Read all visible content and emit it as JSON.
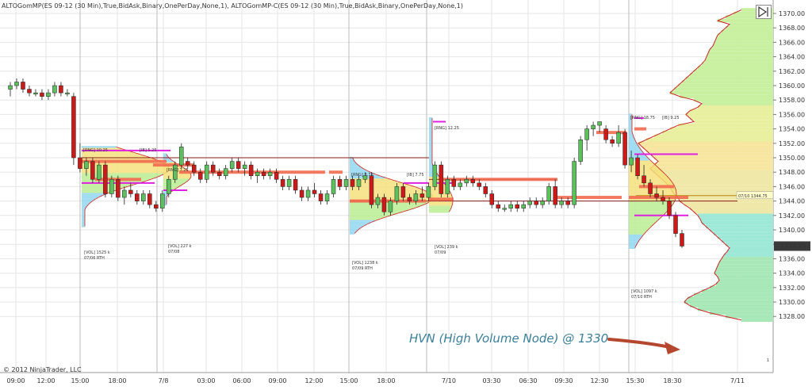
{
  "header": {
    "title": "ALTOGomMP(ES 09-12 (30 Min),True,BidAsk,Binary,OnePerDay,None,1), ALTOGomMP-C(ES 09-12 (30 Min),True,BidAsk,Binary,OnePerDay,None,1)"
  },
  "copyright": "© 2012 NinjaTrader, LLC",
  "annotation": "HVN (High Volume Node) @ 1330",
  "y_axis": {
    "ticks": [
      "1370.00",
      "1368.00",
      "1366.00",
      "1364.00",
      "1362.00",
      "1360.00",
      "1358.00",
      "1356.00",
      "1354.00",
      "1352.00",
      "1350.00",
      "1348.00",
      "1346.00",
      "1344.00",
      "1342.00",
      "1340.00",
      "1338.00",
      "1336.00",
      "1334.00",
      "1332.00",
      "1330.00",
      "1328.00"
    ],
    "current_price": "1337.75",
    "marker_label": "07/10 1344.75"
  },
  "x_axis": {
    "ticks": [
      "09:00",
      "12:00",
      "15:00",
      "18:00",
      "7/8",
      "03:00",
      "06:00",
      "09:00",
      "12:00",
      "15:00",
      "18:00",
      "7/10",
      "03:30",
      "06:30",
      "09:30",
      "12:30",
      "15:30",
      "18:30",
      "7/11"
    ]
  },
  "profile_labels": {
    "p1_rng": "[RNG] 10.25",
    "p1_ib": "[IB] 5.25",
    "p1_vol": "[VOL] 1525 k",
    "p1_date": "07/06 RTH",
    "p2_rng": "[RNG] 7.25",
    "p2_vol": "[VOL] 227 k",
    "p2_date": "07/08",
    "p3_rng": "[RNG] 8.75",
    "p3_ib": "[IB] 7.75",
    "p3_vol": "[VOL] 1238 k",
    "p3_date": "07/09 RTH",
    "p4_rng": "[RNG] 12.25",
    "p4_vol": "[VOL] 239 k",
    "p4_date": "07/09",
    "p5_rng": "[RNG] 18.75",
    "p5_ib": "[IB] 9.25",
    "p5_vol": "[VOL] 1097 k",
    "p5_date": "07/10 RTH"
  },
  "corner_number": "1",
  "colors": {
    "up_candle": "#5cc05c",
    "down_candle": "#cc1a1a",
    "poc": "#f26a4f",
    "profile_outline": "#cc2222",
    "magenta": "#e020e0",
    "naked_poc": "#8b1a1a",
    "grid": "#e6e6e6",
    "arrow": "#b5472f",
    "annotation": "#3a7f9a"
  },
  "chart_data": {
    "type": "candlestick",
    "title": "",
    "ylim": [
      1327.5,
      1371
    ],
    "candles": [
      {
        "o": 1359.5,
        "h": 1360.5,
        "l": 1358.5,
        "c": 1360.0
      },
      {
        "o": 1360.0,
        "h": 1361.0,
        "l": 1359.5,
        "c": 1360.5
      },
      {
        "o": 1360.5,
        "h": 1361.0,
        "l": 1359.0,
        "c": 1359.5
      },
      {
        "o": 1359.5,
        "h": 1360.0,
        "l": 1358.5,
        "c": 1359.0
      },
      {
        "o": 1359.0,
        "h": 1359.5,
        "l": 1358.5,
        "c": 1359.0
      },
      {
        "o": 1359.0,
        "h": 1359.5,
        "l": 1358.0,
        "c": 1358.5
      },
      {
        "o": 1358.5,
        "h": 1359.5,
        "l": 1358.0,
        "c": 1359.0
      },
      {
        "o": 1359.0,
        "h": 1360.5,
        "l": 1358.5,
        "c": 1360.0
      },
      {
        "o": 1360.0,
        "h": 1360.5,
        "l": 1358.5,
        "c": 1359.0
      },
      {
        "o": 1359.0,
        "h": 1359.5,
        "l": 1358.5,
        "c": 1359.0
      },
      {
        "o": 1358.5,
        "h": 1359.0,
        "l": 1349.0,
        "c": 1350.0
      },
      {
        "o": 1350.0,
        "h": 1352.0,
        "l": 1348.0,
        "c": 1348.5
      },
      {
        "o": 1348.5,
        "h": 1350.0,
        "l": 1347.5,
        "c": 1349.5
      },
      {
        "o": 1349.5,
        "h": 1350.0,
        "l": 1346.5,
        "c": 1347.0
      },
      {
        "o": 1347.0,
        "h": 1349.5,
        "l": 1346.5,
        "c": 1349.0
      },
      {
        "o": 1349.0,
        "h": 1349.5,
        "l": 1344.5,
        "c": 1345.0
      },
      {
        "o": 1345.0,
        "h": 1347.5,
        "l": 1344.5,
        "c": 1347.0
      },
      {
        "o": 1347.0,
        "h": 1347.5,
        "l": 1344.0,
        "c": 1344.5
      },
      {
        "o": 1344.5,
        "h": 1346.0,
        "l": 1343.5,
        "c": 1345.5
      },
      {
        "o": 1345.5,
        "h": 1346.5,
        "l": 1344.5,
        "c": 1345.0
      },
      {
        "o": 1345.0,
        "h": 1345.5,
        "l": 1343.5,
        "c": 1344.0
      },
      {
        "o": 1344.0,
        "h": 1345.5,
        "l": 1343.5,
        "c": 1345.0
      },
      {
        "o": 1345.0,
        "h": 1345.5,
        "l": 1343.0,
        "c": 1343.5
      },
      {
        "o": 1343.5,
        "h": 1344.0,
        "l": 1342.5,
        "c": 1343.0
      },
      {
        "o": 1343.0,
        "h": 1345.5,
        "l": 1342.5,
        "c": 1345.0
      },
      {
        "o": 1345.0,
        "h": 1347.5,
        "l": 1344.5,
        "c": 1347.0
      },
      {
        "o": 1347.0,
        "h": 1349.5,
        "l": 1346.5,
        "c": 1349.0
      },
      {
        "o": 1349.0,
        "h": 1352.0,
        "l": 1348.5,
        "c": 1351.5
      },
      {
        "o": 1349.5,
        "h": 1350.0,
        "l": 1348.5,
        "c": 1349.0
      },
      {
        "o": 1349.0,
        "h": 1349.5,
        "l": 1347.5,
        "c": 1348.0
      },
      {
        "o": 1348.0,
        "h": 1348.5,
        "l": 1346.5,
        "c": 1347.0
      },
      {
        "o": 1347.0,
        "h": 1349.5,
        "l": 1346.5,
        "c": 1349.0
      },
      {
        "o": 1349.0,
        "h": 1349.5,
        "l": 1347.5,
        "c": 1348.0
      },
      {
        "o": 1348.0,
        "h": 1348.5,
        "l": 1347.0,
        "c": 1347.5
      },
      {
        "o": 1347.5,
        "h": 1349.0,
        "l": 1347.0,
        "c": 1348.5
      },
      {
        "o": 1348.5,
        "h": 1350.0,
        "l": 1348.0,
        "c": 1349.5
      },
      {
        "o": 1349.5,
        "h": 1350.0,
        "l": 1348.0,
        "c": 1348.5
      },
      {
        "o": 1348.5,
        "h": 1349.5,
        "l": 1347.5,
        "c": 1349.0
      },
      {
        "o": 1349.0,
        "h": 1349.5,
        "l": 1347.0,
        "c": 1347.5
      },
      {
        "o": 1347.5,
        "h": 1348.5,
        "l": 1346.5,
        "c": 1348.0
      },
      {
        "o": 1348.0,
        "h": 1348.5,
        "l": 1347.0,
        "c": 1347.5
      },
      {
        "o": 1347.5,
        "h": 1348.5,
        "l": 1347.0,
        "c": 1348.0
      },
      {
        "o": 1348.0,
        "h": 1348.5,
        "l": 1346.5,
        "c": 1347.0
      },
      {
        "o": 1347.0,
        "h": 1347.5,
        "l": 1345.5,
        "c": 1346.0
      },
      {
        "o": 1346.0,
        "h": 1347.5,
        "l": 1345.5,
        "c": 1347.0
      },
      {
        "o": 1347.0,
        "h": 1347.5,
        "l": 1345.0,
        "c": 1345.5
      },
      {
        "o": 1345.5,
        "h": 1346.0,
        "l": 1344.0,
        "c": 1344.5
      },
      {
        "o": 1344.5,
        "h": 1346.0,
        "l": 1344.0,
        "c": 1345.5
      },
      {
        "o": 1345.5,
        "h": 1346.5,
        "l": 1344.5,
        "c": 1345.0
      },
      {
        "o": 1345.0,
        "h": 1345.5,
        "l": 1343.5,
        "c": 1344.0
      },
      {
        "o": 1344.0,
        "h": 1345.5,
        "l": 1343.5,
        "c": 1345.0
      },
      {
        "o": 1345.0,
        "h": 1347.5,
        "l": 1344.5,
        "c": 1347.0
      },
      {
        "o": 1347.0,
        "h": 1347.5,
        "l": 1345.5,
        "c": 1346.0
      },
      {
        "o": 1346.0,
        "h": 1347.5,
        "l": 1345.5,
        "c": 1347.0
      },
      {
        "o": 1347.0,
        "h": 1347.5,
        "l": 1345.5,
        "c": 1346.0
      },
      {
        "o": 1346.0,
        "h": 1347.5,
        "l": 1345.5,
        "c": 1347.0
      },
      {
        "o": 1347.0,
        "h": 1348.0,
        "l": 1346.5,
        "c": 1347.5
      },
      {
        "o": 1347.5,
        "h": 1348.0,
        "l": 1343.0,
        "c": 1343.5
      },
      {
        "o": 1343.5,
        "h": 1345.0,
        "l": 1343.0,
        "c": 1344.5
      },
      {
        "o": 1344.5,
        "h": 1345.0,
        "l": 1342.0,
        "c": 1342.5
      },
      {
        "o": 1342.5,
        "h": 1344.5,
        "l": 1342.0,
        "c": 1344.0
      },
      {
        "o": 1344.0,
        "h": 1346.5,
        "l": 1343.5,
        "c": 1346.0
      },
      {
        "o": 1346.0,
        "h": 1346.5,
        "l": 1344.0,
        "c": 1344.5
      },
      {
        "o": 1344.5,
        "h": 1345.0,
        "l": 1343.5,
        "c": 1344.0
      },
      {
        "o": 1344.0,
        "h": 1345.5,
        "l": 1343.5,
        "c": 1345.0
      },
      {
        "o": 1345.0,
        "h": 1346.0,
        "l": 1344.0,
        "c": 1344.5
      },
      {
        "o": 1344.5,
        "h": 1346.5,
        "l": 1344.0,
        "c": 1346.0
      },
      {
        "o": 1346.0,
        "h": 1349.5,
        "l": 1345.5,
        "c": 1349.0
      },
      {
        "o": 1349.0,
        "h": 1349.5,
        "l": 1344.5,
        "c": 1345.0
      },
      {
        "o": 1345.0,
        "h": 1347.5,
        "l": 1344.5,
        "c": 1347.0
      },
      {
        "o": 1347.0,
        "h": 1347.5,
        "l": 1345.5,
        "c": 1346.0
      },
      {
        "o": 1346.0,
        "h": 1347.0,
        "l": 1345.5,
        "c": 1346.5
      },
      {
        "o": 1346.5,
        "h": 1347.5,
        "l": 1346.0,
        "c": 1347.0
      },
      {
        "o": 1347.0,
        "h": 1347.5,
        "l": 1346.0,
        "c": 1346.5
      },
      {
        "o": 1346.5,
        "h": 1347.0,
        "l": 1345.5,
        "c": 1346.0
      },
      {
        "o": 1346.0,
        "h": 1346.5,
        "l": 1344.5,
        "c": 1345.0
      },
      {
        "o": 1345.0,
        "h": 1345.5,
        "l": 1343.0,
        "c": 1343.5
      },
      {
        "o": 1343.5,
        "h": 1344.0,
        "l": 1342.5,
        "c": 1343.0
      },
      {
        "o": 1343.0,
        "h": 1343.5,
        "l": 1342.5,
        "c": 1343.0
      },
      {
        "o": 1343.0,
        "h": 1344.0,
        "l": 1342.5,
        "c": 1343.5
      },
      {
        "o": 1343.5,
        "h": 1344.0,
        "l": 1342.5,
        "c": 1343.0
      },
      {
        "o": 1343.0,
        "h": 1344.0,
        "l": 1342.5,
        "c": 1343.5
      },
      {
        "o": 1343.5,
        "h": 1344.5,
        "l": 1343.0,
        "c": 1344.0
      },
      {
        "o": 1344.0,
        "h": 1344.5,
        "l": 1343.0,
        "c": 1343.5
      },
      {
        "o": 1343.5,
        "h": 1344.5,
        "l": 1343.0,
        "c": 1344.0
      },
      {
        "o": 1344.0,
        "h": 1346.5,
        "l": 1343.5,
        "c": 1346.0
      },
      {
        "o": 1346.0,
        "h": 1347.0,
        "l": 1343.0,
        "c": 1343.5
      },
      {
        "o": 1343.5,
        "h": 1344.5,
        "l": 1343.0,
        "c": 1344.0
      },
      {
        "o": 1344.0,
        "h": 1344.5,
        "l": 1343.0,
        "c": 1343.5
      },
      {
        "o": 1343.5,
        "h": 1350.0,
        "l": 1343.0,
        "c": 1349.5
      },
      {
        "o": 1349.5,
        "h": 1353.0,
        "l": 1349.0,
        "c": 1352.5
      },
      {
        "o": 1352.5,
        "h": 1354.5,
        "l": 1351.0,
        "c": 1354.0
      },
      {
        "o": 1354.0,
        "h": 1355.0,
        "l": 1353.0,
        "c": 1354.5
      },
      {
        "o": 1354.5,
        "h": 1355.0,
        "l": 1353.5,
        "c": 1355.0
      },
      {
        "o": 1354.0,
        "h": 1354.5,
        "l": 1352.0,
        "c": 1352.5
      },
      {
        "o": 1352.5,
        "h": 1353.0,
        "l": 1351.5,
        "c": 1352.0
      },
      {
        "o": 1352.0,
        "h": 1354.5,
        "l": 1351.5,
        "c": 1353.5
      },
      {
        "o": 1353.5,
        "h": 1354.0,
        "l": 1348.5,
        "c": 1349.0
      },
      {
        "o": 1349.0,
        "h": 1351.0,
        "l": 1348.0,
        "c": 1350.0
      },
      {
        "o": 1350.0,
        "h": 1350.5,
        "l": 1347.0,
        "c": 1347.5
      },
      {
        "o": 1347.5,
        "h": 1349.0,
        "l": 1346.0,
        "c": 1346.5
      },
      {
        "o": 1346.5,
        "h": 1347.0,
        "l": 1344.5,
        "c": 1345.0
      },
      {
        "o": 1345.0,
        "h": 1346.0,
        "l": 1344.0,
        "c": 1344.5
      },
      {
        "o": 1344.5,
        "h": 1345.5,
        "l": 1343.5,
        "c": 1344.0
      },
      {
        "o": 1344.0,
        "h": 1344.5,
        "l": 1341.5,
        "c": 1342.0
      },
      {
        "o": 1342.0,
        "h": 1342.5,
        "l": 1339.0,
        "c": 1339.5
      },
      {
        "o": 1339.5,
        "h": 1340.0,
        "l": 1337.5,
        "c": 1337.75
      }
    ]
  }
}
